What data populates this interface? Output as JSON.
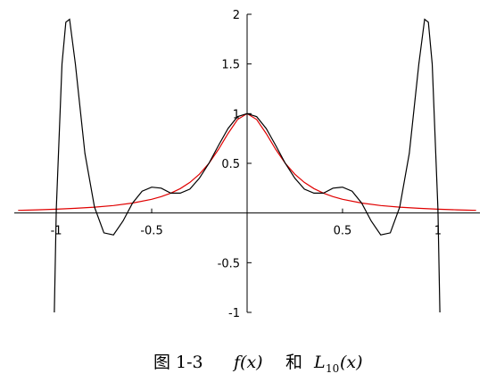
{
  "chart_data": {
    "type": "line",
    "caption": {
      "figure": "图 1-3",
      "f": "f(x)",
      "and": "和",
      "L": "L",
      "sub": "10",
      "arg": "(x)"
    },
    "xlim": [
      -1.22,
      1.22
    ],
    "ylim": [
      -1,
      2
    ],
    "xticks": [
      -1,
      -0.5,
      0.5,
      1
    ],
    "yticks": [
      -1,
      -0.5,
      0.5,
      1,
      1.5,
      2
    ],
    "series": [
      {
        "color": "#000000",
        "x": [
          -1.01,
          -1,
          -0.97,
          -0.95,
          -0.93,
          -0.9,
          -0.85,
          -0.8,
          -0.75,
          -0.7,
          -0.65,
          -0.6,
          -0.55,
          -0.5,
          -0.45,
          -0.4,
          -0.35,
          -0.3,
          -0.25,
          -0.2,
          -0.15,
          -0.1,
          -0.05,
          0,
          0.05,
          0.1,
          0.15,
          0.2,
          0.25,
          0.3,
          0.35,
          0.4,
          0.45,
          0.5,
          0.55,
          0.6,
          0.65,
          0.7,
          0.75,
          0.8,
          0.85,
          0.9,
          0.93,
          0.95,
          0.97,
          1,
          1.01
        ],
        "values": [
          -1,
          0.04,
          1.5,
          1.92,
          1.95,
          1.5,
          0.6,
          0.06,
          -0.2,
          -0.22,
          -0.08,
          0.1,
          0.22,
          0.26,
          0.25,
          0.2,
          0.2,
          0.24,
          0.35,
          0.5,
          0.68,
          0.85,
          0.97,
          1,
          0.97,
          0.85,
          0.68,
          0.5,
          0.35,
          0.24,
          0.2,
          0.2,
          0.25,
          0.26,
          0.22,
          0.1,
          -0.08,
          -0.22,
          -0.2,
          0.06,
          0.6,
          1.5,
          1.95,
          1.92,
          1.5,
          0.04,
          -1
        ]
      },
      {
        "color": "#e00000",
        "x": [
          -1.2,
          -1.1,
          -1,
          -0.9,
          -0.8,
          -0.7,
          -0.6,
          -0.5,
          -0.45,
          -0.4,
          -0.35,
          -0.3,
          -0.25,
          -0.2,
          -0.15,
          -0.1,
          -0.05,
          0,
          0.05,
          0.1,
          0.15,
          0.2,
          0.25,
          0.3,
          0.35,
          0.4,
          0.45,
          0.5,
          0.6,
          0.7,
          0.8,
          0.9,
          1,
          1.1,
          1.2
        ],
        "values": [
          0.027,
          0.032,
          0.038,
          0.047,
          0.059,
          0.075,
          0.1,
          0.138,
          0.165,
          0.2,
          0.246,
          0.308,
          0.39,
          0.5,
          0.64,
          0.8,
          0.941,
          1,
          0.941,
          0.8,
          0.64,
          0.5,
          0.39,
          0.308,
          0.246,
          0.2,
          0.165,
          0.138,
          0.1,
          0.075,
          0.059,
          0.047,
          0.038,
          0.032,
          0.027
        ]
      }
    ]
  }
}
